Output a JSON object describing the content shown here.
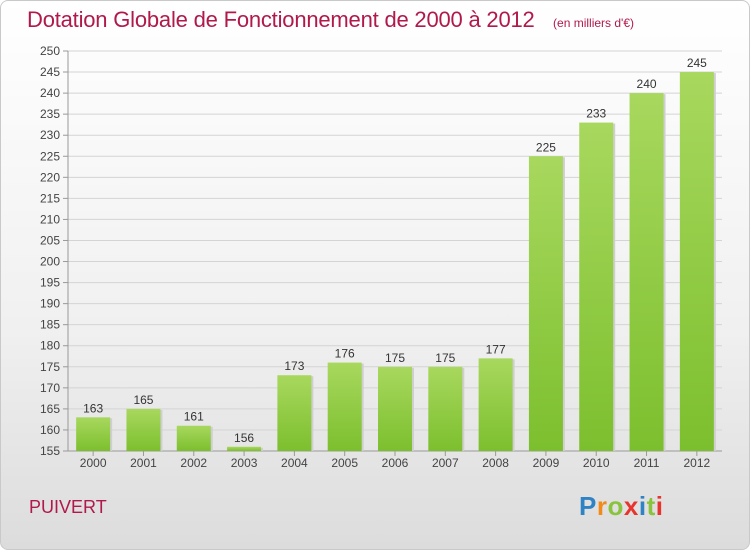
{
  "header": {
    "title": "Dotation Globale de Fonctionnement de 2000 à 2012",
    "unit": "(en milliers d'€)"
  },
  "footer": {
    "town": "PUIVERT",
    "brand_letters": [
      "P",
      "r",
      "o",
      "x",
      "i",
      "t",
      "i"
    ],
    "brand_colors": [
      "#2f83c4",
      "#f28a1a",
      "#8ac43f",
      "#e8342f",
      "#2f83c4",
      "#8ac43f",
      "#e8342f"
    ]
  },
  "chart_data": {
    "type": "bar",
    "categories": [
      "2000",
      "2001",
      "2002",
      "2003",
      "2004",
      "2005",
      "2006",
      "2007",
      "2008",
      "2009",
      "2010",
      "2011",
      "2012"
    ],
    "values": [
      163,
      165,
      161,
      156,
      173,
      176,
      175,
      175,
      177,
      225,
      233,
      240,
      245
    ],
    "ylim": [
      155,
      250
    ],
    "yticks": [
      155,
      160,
      165,
      170,
      175,
      180,
      185,
      190,
      195,
      200,
      205,
      210,
      215,
      220,
      225,
      230,
      235,
      240,
      245,
      250
    ],
    "grid": true,
    "bar_color": "#7cbf2e",
    "bar_color_light": "#a8d85e",
    "data_labels": true
  }
}
